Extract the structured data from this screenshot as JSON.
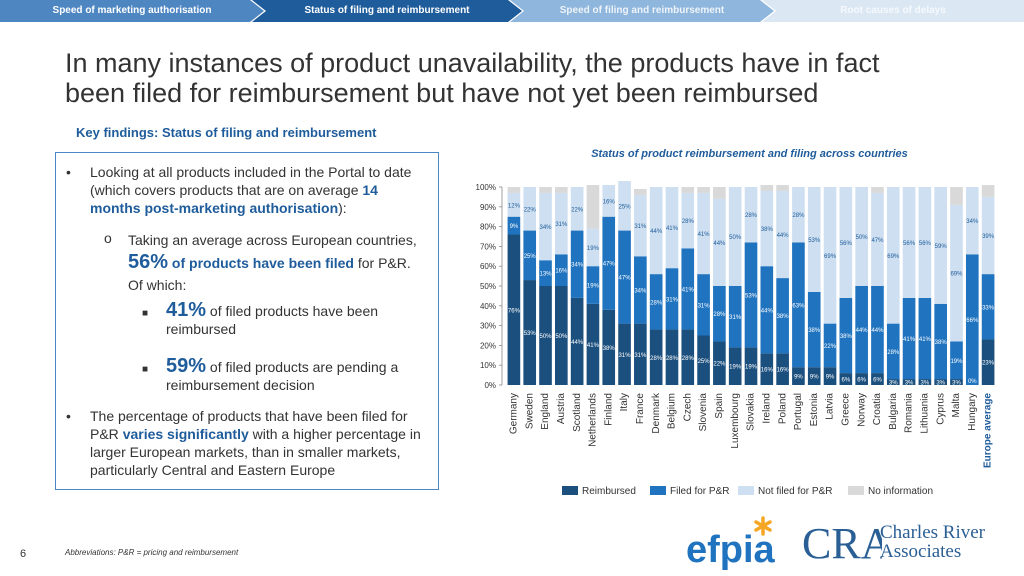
{
  "tabs": [
    {
      "label": "Speed of marketing authorisation"
    },
    {
      "label": "Status of filing and reimbursement"
    },
    {
      "label": "Speed of filing and reimbursement"
    },
    {
      "label": "Root causes of delays"
    }
  ],
  "title_line1": "In many instances of product unavailability, the products have in fact",
  "title_line2": "been filed for reimbursement but have not yet been reimbursed",
  "subtitle": "Key findings: Status of filing and reimbursement",
  "findings": {
    "b1_pre": "Looking at all products included in the Portal to date (which covers products that are on average",
    "b1_months": "14 months post-marketing authorisation",
    "b1_post": "):",
    "b2_pre": "Taking an average across European countries,",
    "b2_pct": "56%",
    "b2_bold": "of products have been filed",
    "b2_post": "for P&R. Of which:",
    "b3_pct": "41%",
    "b3_text": "of filed products have been reimbursed",
    "b4_pct": "59%",
    "b4_text": "of filed products are pending a reimbursement decision",
    "b5_pre": "The percentage of products that have been filed for P&R",
    "b5_bold": "varies significantly",
    "b5_post": "with a higher percentage in larger European markets, than in smaller markets, particularly Central and Eastern Europe"
  },
  "page_number": "6",
  "footnote": "Abbreviations: P&R = pricing and reimbursement",
  "logos": {
    "efpia": "efpia",
    "cra": "CRA",
    "cra_line1": "Charles River",
    "cra_line2": "Associates"
  },
  "chart_data": {
    "type": "bar",
    "stacked": true,
    "title": "Status of product reimbursement and filing across countries",
    "ylim": [
      0,
      100
    ],
    "yticks": [
      "0%",
      "10%",
      "20%",
      "30%",
      "40%",
      "50%",
      "60%",
      "70%",
      "80%",
      "90%",
      "100%"
    ],
    "categories": [
      "Germany",
      "Sweden",
      "England",
      "Austria",
      "Scotland",
      "Netherlands",
      "Finland",
      "Italy",
      "France",
      "Denmark",
      "Belgium",
      "Czech",
      "Slovenia",
      "Spain",
      "Luxembourg",
      "Slovakia",
      "Ireland",
      "Poland",
      "Portugal",
      "Estonia",
      "Latvia",
      "Greece",
      "Norway",
      "Croatia",
      "Bulgaria",
      "Romania",
      "Lithuania",
      "Cyprus",
      "Malta",
      "Hungary",
      "Europe average"
    ],
    "highlight_category": "Europe average",
    "colors": {
      "Reimbursed": "#1b4f7e",
      "Filed for P&R": "#1f73bf",
      "Not filed for P&R": "#cddff0",
      "No information": "#d9d9d9"
    },
    "series": [
      {
        "name": "Reimbursed",
        "values": [
          76,
          53,
          50,
          50,
          44,
          41,
          38,
          31,
          31,
          28,
          28,
          28,
          25,
          22,
          19,
          19,
          16,
          16,
          9,
          9,
          9,
          6,
          6,
          6,
          3,
          3,
          3,
          3,
          3,
          0,
          23
        ]
      },
      {
        "name": "Filed for P&R",
        "values": [
          9,
          25,
          13,
          16,
          34,
          19,
          47,
          47,
          34,
          28,
          31,
          41,
          31,
          28,
          31,
          53,
          44,
          38,
          63,
          38,
          22,
          38,
          44,
          44,
          28,
          41,
          41,
          38,
          19,
          66,
          33
        ]
      },
      {
        "name": "Not filed for P&R",
        "values": [
          12,
          22,
          34,
          31,
          22,
          19,
          16,
          25,
          31,
          44,
          41,
          28,
          41,
          44,
          50,
          28,
          38,
          44,
          28,
          53,
          69,
          56,
          50,
          47,
          69,
          56,
          56,
          59,
          69,
          34,
          39
        ]
      },
      {
        "name": "No information",
        "values": [
          3,
          0,
          3,
          3,
          0,
          22,
          0,
          0,
          3,
          0,
          0,
          3,
          3,
          6,
          0,
          0,
          3,
          3,
          0,
          0,
          0,
          0,
          0,
          3,
          0,
          0,
          0,
          0,
          9,
          0,
          6
        ]
      }
    ],
    "legend": [
      "Reimbursed",
      "Filed for P&R",
      "Not filed for P&R",
      "No information"
    ],
    "legend_position": "bottom"
  }
}
